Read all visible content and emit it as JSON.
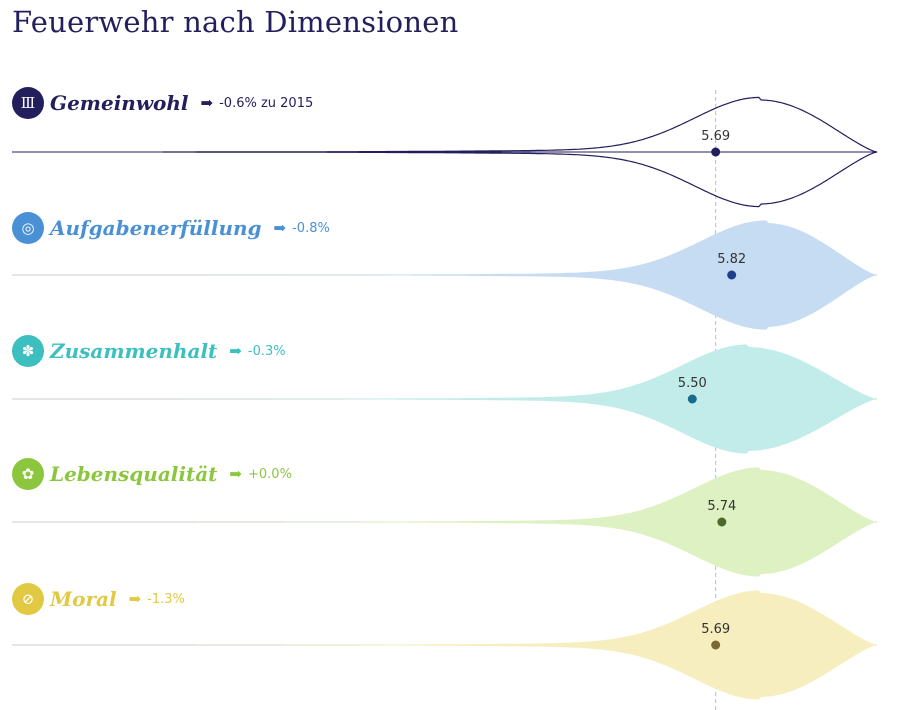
{
  "chart_data": {
    "type": "violin",
    "title": "Feuerwehr nach Dimensionen",
    "xlim": [
      0,
      7
    ],
    "reference_line": 5.69,
    "series": [
      {
        "name": "Gemeinwohl",
        "mean": 5.69,
        "mean_label": "5.69",
        "change": "-0.6% zu 2015",
        "color": "#231e5c",
        "fill": "none",
        "icon": "brandenburg-gate-icon",
        "mode": 6.05
      },
      {
        "name": "Aufgabenerfüllung",
        "mean": 5.82,
        "mean_label": "5.82",
        "change": "-0.8%",
        "color": "#4a90d4",
        "fill": "#c6dcf2",
        "icon": "target-icon",
        "mode": 6.1
      },
      {
        "name": "Zusammenhalt",
        "mean": 5.5,
        "mean_label": "5.50",
        "change": "-0.3%",
        "color": "#3dbfc0",
        "fill": "#c2ecea",
        "icon": "people-icon",
        "mode": 5.95
      },
      {
        "name": "Lebensqualität",
        "mean": 5.74,
        "mean_label": "5.74",
        "change": "+0.0%",
        "color": "#8cc63f",
        "fill": "#def1c2",
        "icon": "flower-icon",
        "mode": 6.05
      },
      {
        "name": "Moral",
        "mean": 5.69,
        "mean_label": "5.69",
        "change": "-1.3%",
        "color": "#e2c943",
        "fill": "#f7eebf",
        "icon": "gauge-icon",
        "mode": 6.05
      }
    ]
  }
}
